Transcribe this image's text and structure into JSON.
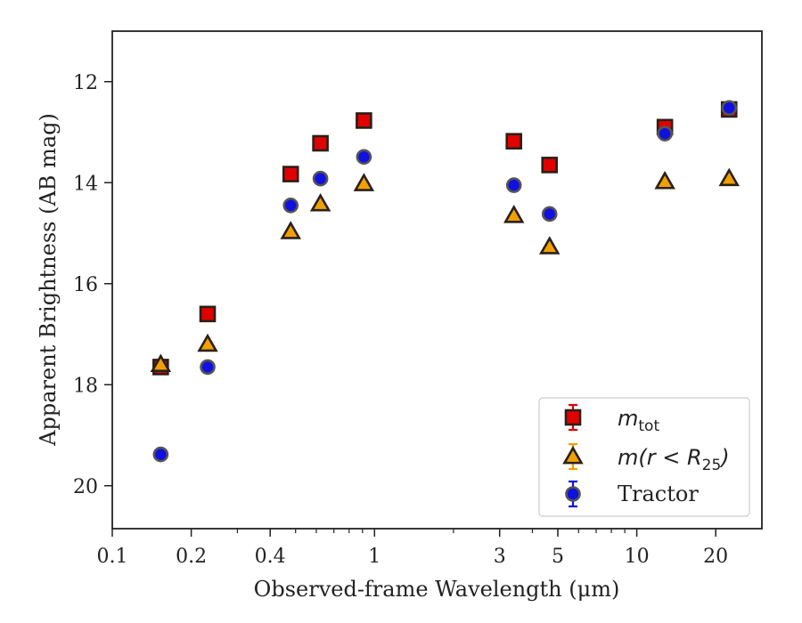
{
  "chart_data": {
    "type": "scatter",
    "title": "",
    "xlabel": "Observed-frame Wavelength (μm)",
    "ylabel": "Apparent Brightness (AB mag)",
    "xscale": "log",
    "xlim": [
      0.1,
      30
    ],
    "ylim": [
      20.85,
      11.0
    ],
    "y_inverted": true,
    "xticks": [
      0.1,
      0.2,
      0.4,
      1,
      3,
      5,
      10,
      20
    ],
    "xtick_labels": [
      "0.1",
      "0.2",
      "0.4",
      "1",
      "3",
      "5",
      "10",
      "20"
    ],
    "yticks": [
      12,
      14,
      16,
      18,
      20
    ],
    "ytick_labels": [
      "12",
      "14",
      "16",
      "18",
      "20"
    ],
    "grid": false,
    "legend_position": "bottom-right",
    "series": [
      {
        "key": "mtot",
        "label_main": "m",
        "label_sub": "tot",
        "marker": "square",
        "color": "#e00000",
        "x": [
          0.153,
          0.231,
          0.479,
          0.622,
          0.911,
          3.4,
          4.65,
          12.8,
          22.5
        ],
        "y": [
          17.65,
          16.6,
          13.83,
          13.22,
          12.77,
          13.18,
          13.65,
          12.9,
          12.55
        ]
      },
      {
        "key": "mr25",
        "label_main": "m(r < R",
        "label_sub": "25",
        "label_tail": ")",
        "marker": "triangle",
        "color": "#f0a000",
        "x": [
          0.153,
          0.231,
          0.479,
          0.622,
          0.911,
          3.4,
          4.65,
          12.8,
          22.5
        ],
        "y": [
          17.6,
          17.2,
          14.97,
          14.42,
          14.02,
          14.65,
          15.27,
          13.98,
          13.92
        ]
      },
      {
        "key": "tractor",
        "label_main": "Tractor",
        "marker": "circle",
        "color": "#1010e0",
        "x": [
          0.153,
          0.231,
          0.479,
          0.622,
          0.911,
          3.4,
          4.65,
          12.8,
          22.5
        ],
        "y": [
          19.38,
          17.65,
          14.45,
          13.92,
          13.49,
          14.05,
          14.62,
          13.03,
          12.52
        ]
      }
    ]
  }
}
